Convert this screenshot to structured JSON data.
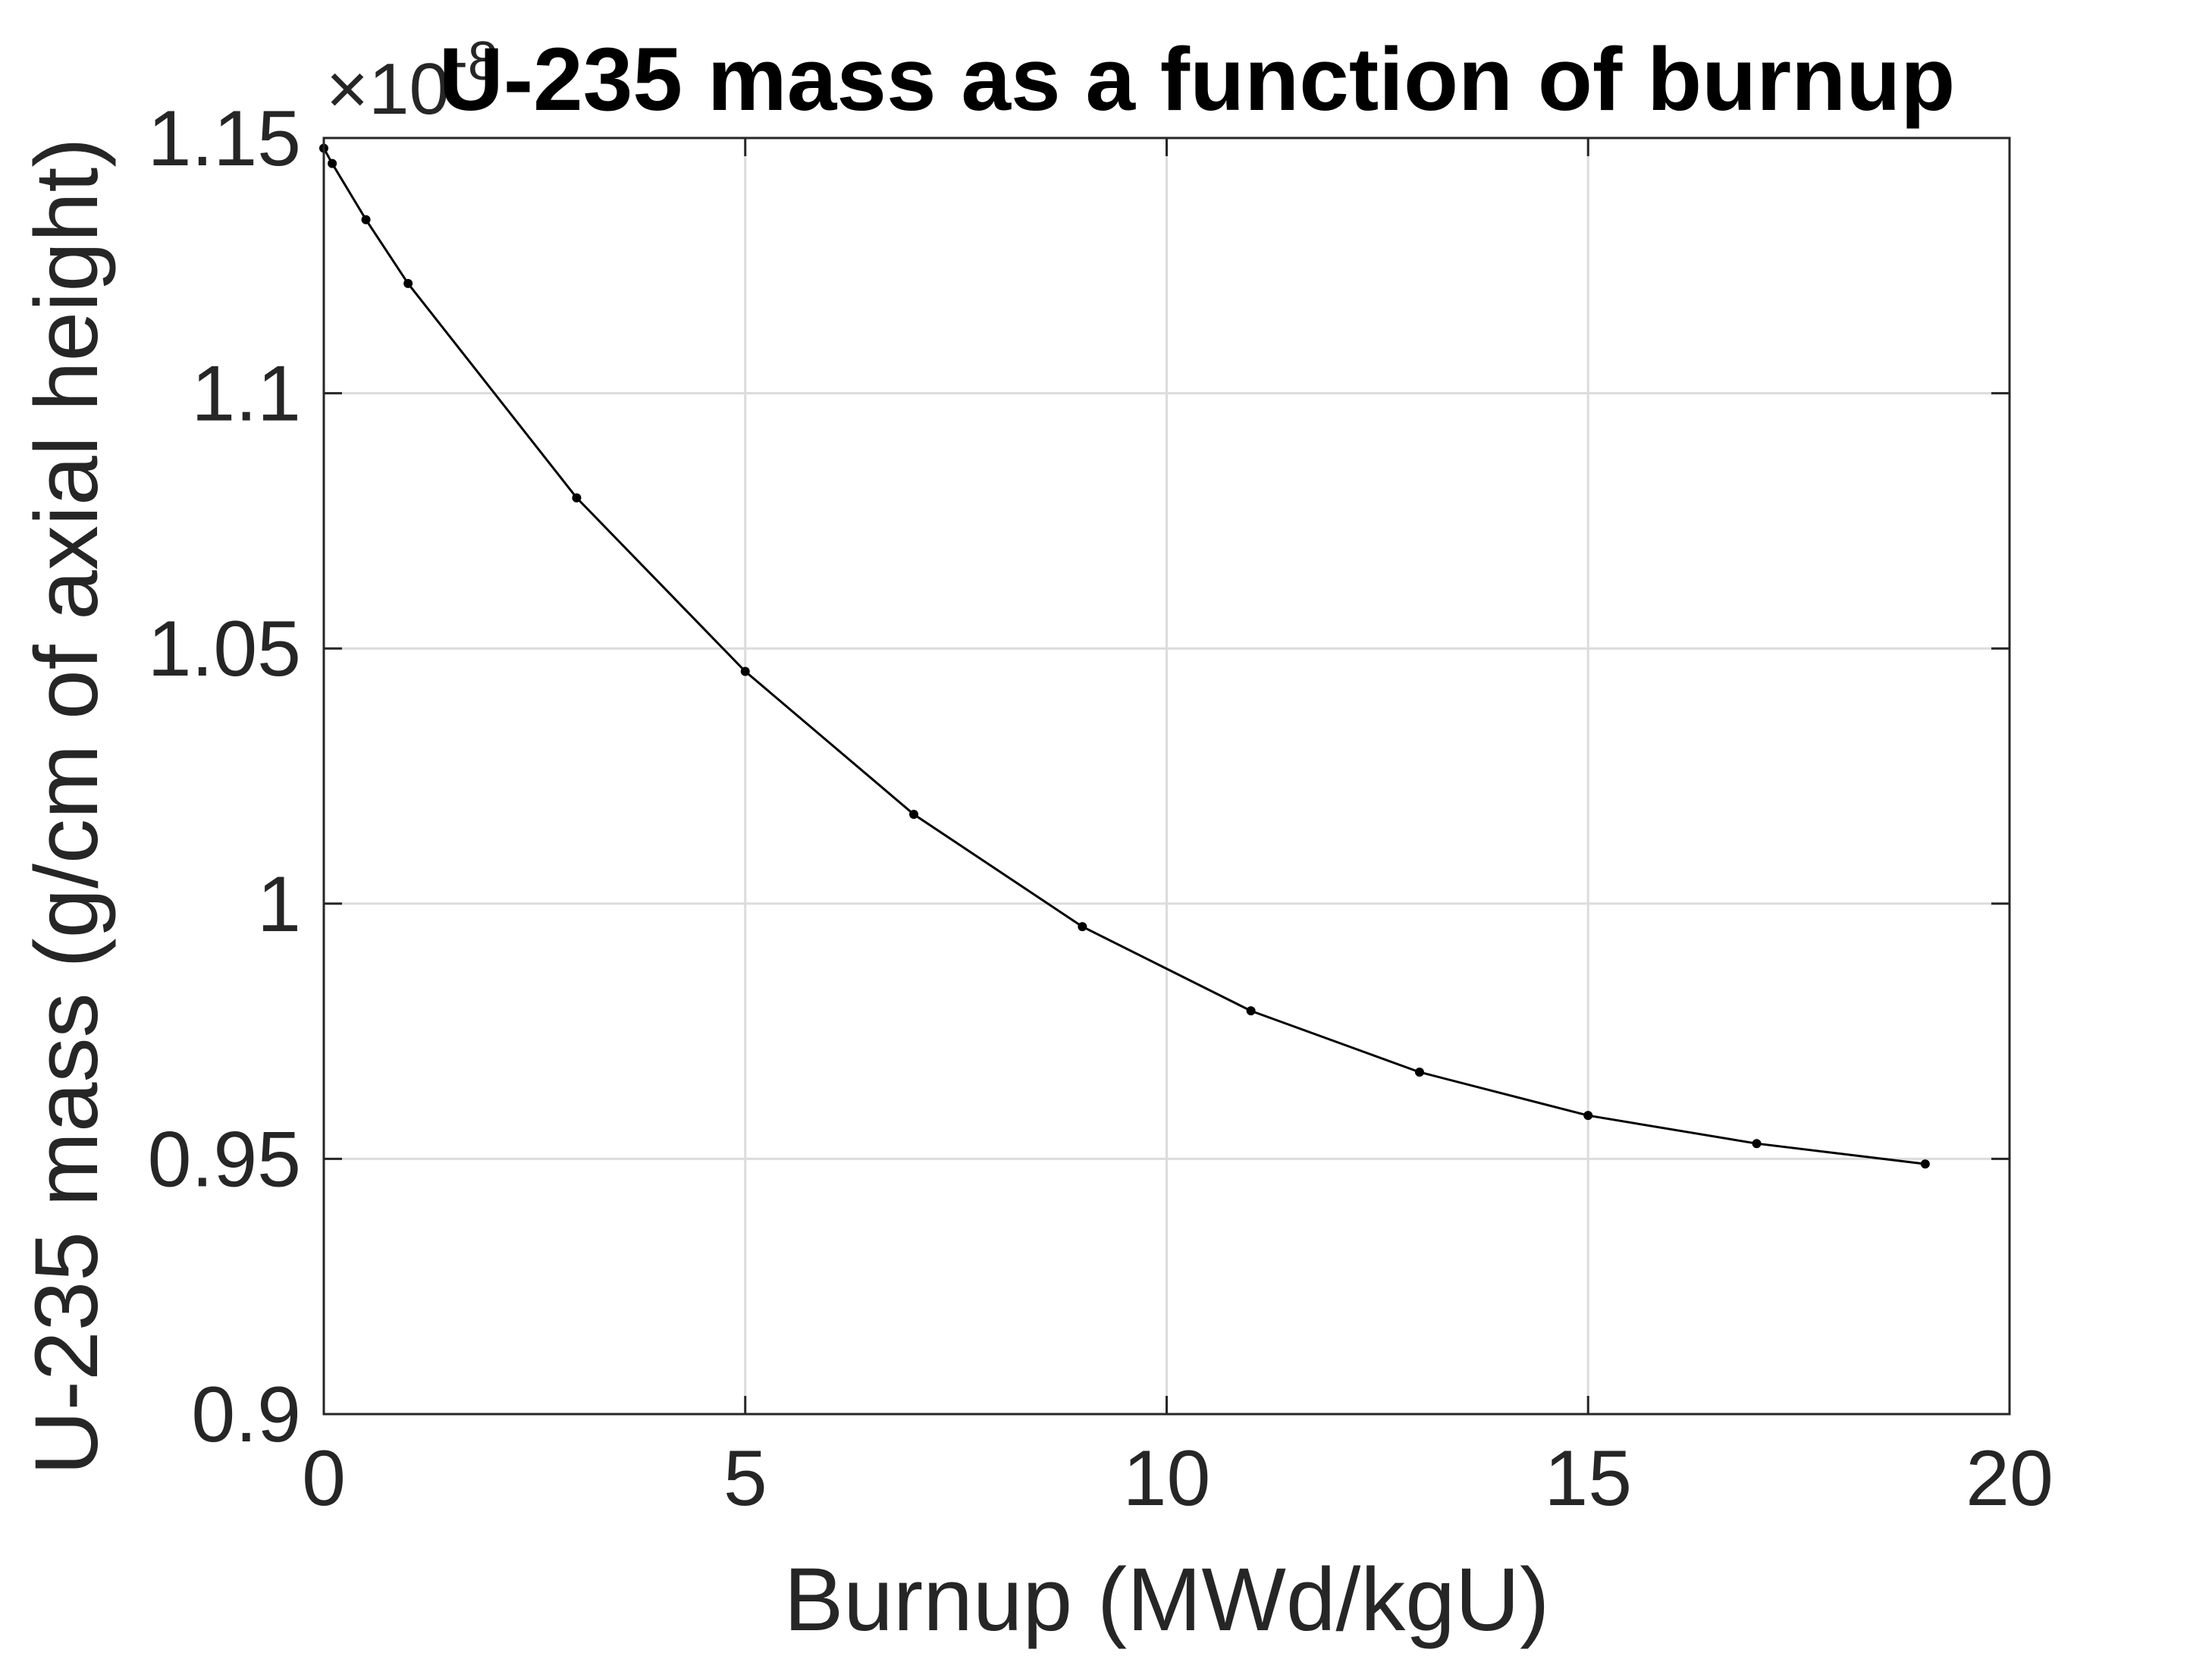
{
  "chart_data": {
    "type": "line",
    "title": "U-235 mass as a function of burnup",
    "xlabel": "Burnup (MWd/kgU)",
    "ylabel": "U-235 mass (g/cm of axial height)",
    "y_exponent_label": "×10",
    "y_exponent_power": "-8",
    "xlim": [
      0,
      20
    ],
    "ylim": [
      0.9,
      1.15
    ],
    "x_ticks": [
      0,
      5,
      10,
      15,
      20
    ],
    "x_tick_labels": [
      "0",
      "5",
      "10",
      "15",
      "20"
    ],
    "y_ticks": [
      0.9,
      0.95,
      1.0,
      1.05,
      1.1,
      1.15
    ],
    "y_tick_labels": [
      "0.9",
      "0.95",
      "1",
      "1.05",
      "1.1",
      "1.15"
    ],
    "grid": true,
    "series": [
      {
        "color": "#000000",
        "marker": "dot",
        "x": [
          0,
          0.1,
          0.5,
          1,
          3,
          5,
          7,
          9,
          11,
          13,
          15,
          17,
          19
        ],
        "y": [
          1.148,
          1.145,
          1.134,
          1.1215,
          1.0795,
          1.0455,
          1.0175,
          0.9955,
          0.979,
          0.967,
          0.9585,
          0.953,
          0.949
        ]
      }
    ]
  }
}
